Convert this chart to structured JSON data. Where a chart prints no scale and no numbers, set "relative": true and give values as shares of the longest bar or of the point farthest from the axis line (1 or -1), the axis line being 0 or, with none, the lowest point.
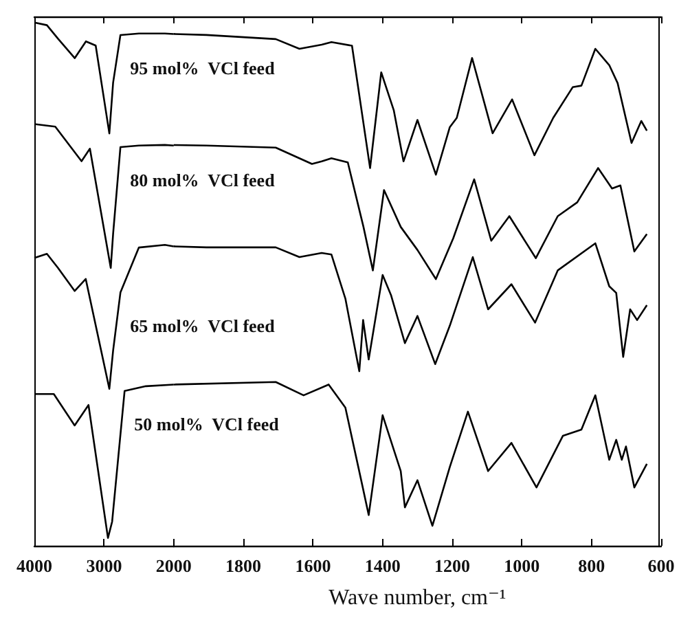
{
  "chart_data": [
    {
      "type": "line",
      "relative": true,
      "xlim": [
        4000,
        2000
      ],
      "xticks": [
        4000,
        3000,
        2000
      ],
      "series": [
        {
          "name": "95 mol%  VCl feed",
          "color": "#000000",
          "x": [
            4000,
            3820,
            3660,
            3420,
            3260,
            3120,
            2924,
            2870,
            2765,
            2500,
            2127,
            2000
          ],
          "values": [
            1.0,
            0.995,
            0.969,
            0.932,
            0.964,
            0.956,
            0.788,
            0.885,
            0.976,
            0.979,
            0.979,
            0.978
          ]
        },
        {
          "name": "80 mol%  VCl feed",
          "color": "#000000",
          "x": [
            4000,
            3700,
            3323,
            3203,
            2904,
            2870,
            2765,
            2500,
            2127,
            2000
          ],
          "values": [
            0.806,
            0.801,
            0.735,
            0.759,
            0.531,
            0.596,
            0.762,
            0.765,
            0.766,
            0.765
          ]
        },
        {
          "name": "65 mol%  VCl feed",
          "color": "#000000",
          "x": [
            4000,
            3820,
            3661,
            3422,
            3263,
            2924,
            2870,
            2765,
            2500,
            2127,
            2000
          ],
          "values": [
            0.55,
            0.558,
            0.531,
            0.487,
            0.51,
            0.3,
            0.373,
            0.484,
            0.57,
            0.575,
            0.572
          ]
        },
        {
          "name": "50 mol%  VCl feed",
          "color": "#000000",
          "x": [
            4000,
            3721,
            3422,
            3223,
            2944,
            2884,
            2705,
            2400,
            2000
          ],
          "values": [
            0.29,
            0.29,
            0.23,
            0.269,
            0.015,
            0.046,
            0.296,
            0.305,
            0.308
          ]
        }
      ]
    },
    {
      "type": "line",
      "relative": true,
      "xlabel": "Wave number, cm⁻¹",
      "xlim": [
        2000,
        600
      ],
      "xticks": [
        1800,
        1600,
        1400,
        1200,
        1000,
        800,
        600
      ],
      "series": [
        {
          "color": "#000000",
          "x": [
            2000,
            1906,
            1707,
            1639,
            1575,
            1547,
            1488,
            1436,
            1404,
            1368,
            1340,
            1300,
            1247,
            1207,
            1187,
            1143,
            1084,
            1028,
            964,
            910,
            854,
            829,
            789,
            749,
            725,
            685,
            657,
            641
          ],
          "values": [
            1.0,
            0.998,
            0.99,
            0.971,
            0.979,
            0.984,
            0.977,
            0.738,
            0.925,
            0.851,
            0.751,
            0.832,
            0.725,
            0.818,
            0.836,
            0.953,
            0.806,
            0.872,
            0.763,
            0.836,
            0.896,
            0.899,
            0.971,
            0.939,
            0.904,
            0.787,
            0.83,
            0.811
          ]
        },
        {
          "color": "#000000",
          "x": [
            2000,
            1906,
            1707,
            1603,
            1575,
            1547,
            1500,
            1455,
            1428,
            1396,
            1348,
            1300,
            1247,
            1197,
            1137,
            1088,
            1036,
            960,
            897,
            841,
            781,
            741,
            717,
            677,
            641
          ],
          "values": [
            0.783,
            0.782,
            0.778,
            0.746,
            0.751,
            0.757,
            0.749,
            0.623,
            0.538,
            0.695,
            0.623,
            0.578,
            0.521,
            0.601,
            0.716,
            0.596,
            0.644,
            0.562,
            0.644,
            0.671,
            0.738,
            0.698,
            0.704,
            0.575,
            0.609
          ]
        },
        {
          "color": "#000000",
          "x": [
            2000,
            1906,
            1707,
            1639,
            1575,
            1547,
            1507,
            1467,
            1456,
            1440,
            1400,
            1376,
            1336,
            1300,
            1249,
            1207,
            1141,
            1097,
            1030,
            962,
            897,
            789,
            749,
            729,
            709,
            689,
            669,
            641
          ],
          "values": [
            0.585,
            0.583,
            0.583,
            0.564,
            0.572,
            0.569,
            0.483,
            0.341,
            0.441,
            0.364,
            0.529,
            0.49,
            0.396,
            0.449,
            0.355,
            0.43,
            0.564,
            0.462,
            0.511,
            0.436,
            0.538,
            0.591,
            0.507,
            0.494,
            0.369,
            0.462,
            0.441,
            0.47
          ]
        },
        {
          "color": "#000000",
          "x": [
            2000,
            1707,
            1627,
            1555,
            1507,
            1459,
            1440,
            1400,
            1348,
            1336,
            1300,
            1257,
            1207,
            1155,
            1097,
            1030,
            958,
            882,
            829,
            789,
            749,
            729,
            713,
            701,
            677,
            641
          ],
          "values": [
            0.315,
            0.32,
            0.294,
            0.315,
            0.27,
            0.12,
            0.06,
            0.255,
            0.146,
            0.075,
            0.128,
            0.039,
            0.154,
            0.262,
            0.146,
            0.201,
            0.114,
            0.215,
            0.227,
            0.294,
            0.168,
            0.207,
            0.168,
            0.194,
            0.114,
            0.16
          ]
        }
      ]
    }
  ]
}
